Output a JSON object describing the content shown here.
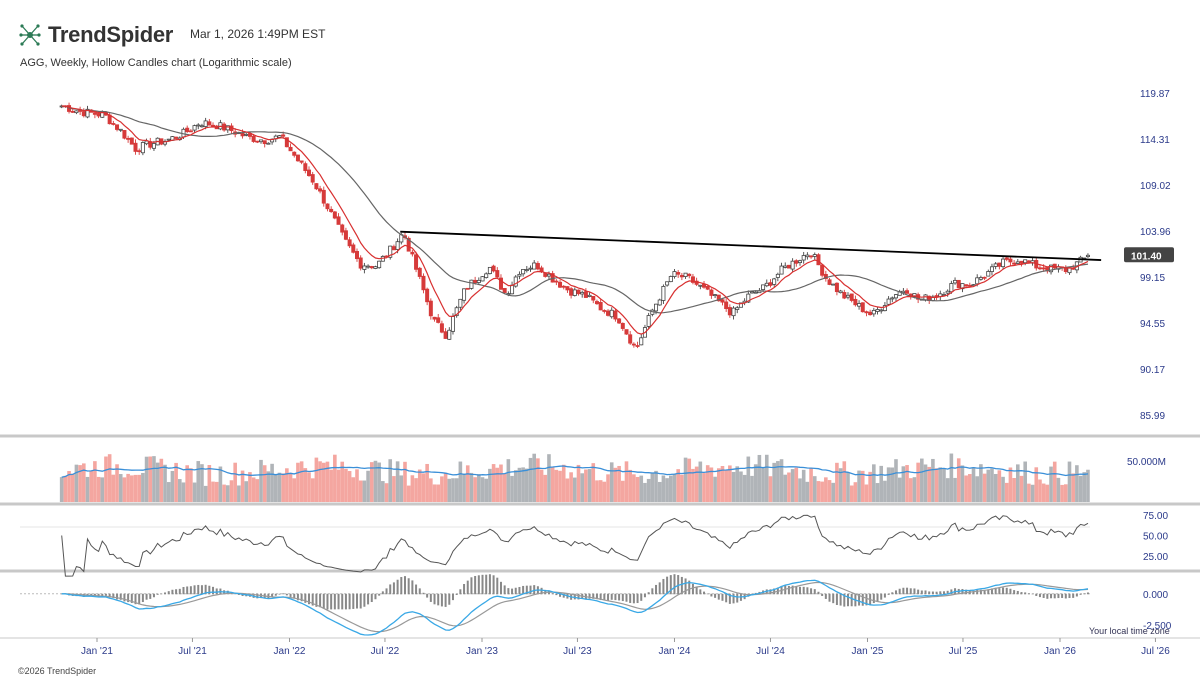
{
  "header": {
    "brand": "TrendSpider",
    "timestamp": "Mar 1, 2026 1:49PM EST",
    "subtitle": "AGG, Weekly, Hollow Candles chart (Logarithmic scale)"
  },
  "footer": {
    "copyright": "©2026 TrendSpider",
    "timezone": "Your local time zone"
  },
  "colors": {
    "up": "#444444",
    "down": "#d63a3a",
    "ema_fast": "#d83030",
    "sma_slow": "#666666",
    "trendline": "#000000",
    "vol_up": "#b0b4b8",
    "vol_down": "#f4a6a0",
    "vol_avg": "#3a8fd8",
    "macd": "#39a8e6",
    "signal": "#999999",
    "axis_text": "#2b3a8a"
  },
  "chart_data": [
    {
      "type": "candlestick",
      "name": "price",
      "scale": "log",
      "y_ticks": [
        119.87,
        114.31,
        109.02,
        103.96,
        99.15,
        94.55,
        90.17,
        85.99
      ],
      "last_price": 101.4,
      "ylim": [
        84.5,
        121.0
      ],
      "x_ticks": [
        "Jan '21",
        "Jul '21",
        "Jan '22",
        "Jul '22",
        "Jan '23",
        "Jul '23",
        "Jan '24",
        "Jul '24",
        "Jan '25",
        "Jul '25",
        "Jan '26",
        "Jul '26"
      ],
      "weekly_close_anchors": [
        [
          "2020-10-26",
          118.3
        ],
        [
          "2020-12-01",
          117.6
        ],
        [
          "2021-01-15",
          117.2
        ],
        [
          "2021-02-15",
          115.3
        ],
        [
          "2021-03-15",
          113.2
        ],
        [
          "2021-04-15",
          113.8
        ],
        [
          "2021-05-15",
          114.2
        ],
        [
          "2021-06-15",
          115.0
        ],
        [
          "2021-07-15",
          116.3
        ],
        [
          "2021-08-15",
          116.0
        ],
        [
          "2021-09-15",
          115.3
        ],
        [
          "2021-10-15",
          114.5
        ],
        [
          "2021-11-15",
          114.2
        ],
        [
          "2021-12-15",
          114.6
        ],
        [
          "2022-01-15",
          112.0
        ],
        [
          "2022-02-15",
          109.5
        ],
        [
          "2022-03-15",
          106.5
        ],
        [
          "2022-04-15",
          103.0
        ],
        [
          "2022-05-15",
          100.5
        ],
        [
          "2022-06-15",
          100.3
        ],
        [
          "2022-07-15",
          102.2
        ],
        [
          "2022-08-05",
          103.8
        ],
        [
          "2022-09-01",
          99.5
        ],
        [
          "2022-10-01",
          94.8
        ],
        [
          "2022-10-25",
          93.4
        ],
        [
          "2022-12-01",
          98.0
        ],
        [
          "2023-01-15",
          100.2
        ],
        [
          "2023-02-15",
          97.4
        ],
        [
          "2023-03-15",
          100.0
        ],
        [
          "2023-04-15",
          100.4
        ],
        [
          "2023-05-15",
          99.0
        ],
        [
          "2023-06-15",
          97.8
        ],
        [
          "2023-07-15",
          97.3
        ],
        [
          "2023-08-15",
          96.0
        ],
        [
          "2023-09-15",
          95.2
        ],
        [
          "2023-10-20",
          92.0
        ],
        [
          "2023-11-20",
          95.8
        ],
        [
          "2023-12-27",
          99.4
        ],
        [
          "2024-01-25",
          99.1
        ],
        [
          "2024-02-25",
          97.9
        ],
        [
          "2024-04-20",
          95.5
        ],
        [
          "2024-05-20",
          97.2
        ],
        [
          "2024-06-20",
          98.1
        ],
        [
          "2024-07-25",
          100.0
        ],
        [
          "2024-09-15",
          101.8
        ],
        [
          "2024-10-15",
          99.0
        ],
        [
          "2024-11-15",
          97.3
        ],
        [
          "2025-01-10",
          95.3
        ],
        [
          "2025-02-15",
          97.2
        ],
        [
          "2025-03-15",
          98.0
        ],
        [
          "2025-04-10",
          96.8
        ],
        [
          "2025-05-15",
          97.4
        ],
        [
          "2025-06-15",
          98.5
        ],
        [
          "2025-07-15",
          98.4
        ],
        [
          "2025-08-15",
          99.5
        ],
        [
          "2025-09-15",
          100.6
        ],
        [
          "2025-10-15",
          101.0
        ],
        [
          "2025-11-15",
          100.3
        ],
        [
          "2025-12-15",
          100.0
        ],
        [
          "2026-01-15",
          99.9
        ],
        [
          "2026-02-27",
          101.4
        ]
      ],
      "trendline": {
        "from": [
          "2022-07-30",
          103.9
        ],
        "to": [
          "2026-03-20",
          100.9
        ]
      },
      "overlays": [
        "ema_fast",
        "sma_slow"
      ]
    },
    {
      "type": "bar",
      "name": "volume",
      "y_ticks_label": "50.000M",
      "ylim": [
        0,
        95
      ]
    },
    {
      "type": "line",
      "name": "rsi",
      "y_ticks": [
        75.0,
        50.0,
        25.0
      ],
      "ylim": [
        10,
        85
      ]
    },
    {
      "type": "line",
      "name": "macd",
      "y_ticks": [
        0.0,
        -2.5
      ],
      "y_tick_labels": [
        "0.000",
        "-2.500"
      ],
      "ylim": [
        -3.3,
        1.5
      ]
    }
  ],
  "chart_text": {
    "price_ticks": [
      "119.87",
      "114.31",
      "109.02",
      "103.96",
      "99.15",
      "94.55",
      "90.17",
      "85.99"
    ],
    "last_price_label": "101.40",
    "volume_tick": "50.000M",
    "rsi_ticks": [
      "75.00",
      "50.00",
      "25.00"
    ],
    "macd_ticks": [
      "0.000",
      "-2.500"
    ],
    "x_ticks": [
      "Jan '21",
      "Jul '21",
      "Jan '22",
      "Jul '22",
      "Jan '23",
      "Jul '23",
      "Jan '24",
      "Jul '24",
      "Jan '25",
      "Jul '25",
      "Jan '26",
      "Jul '26"
    ]
  }
}
